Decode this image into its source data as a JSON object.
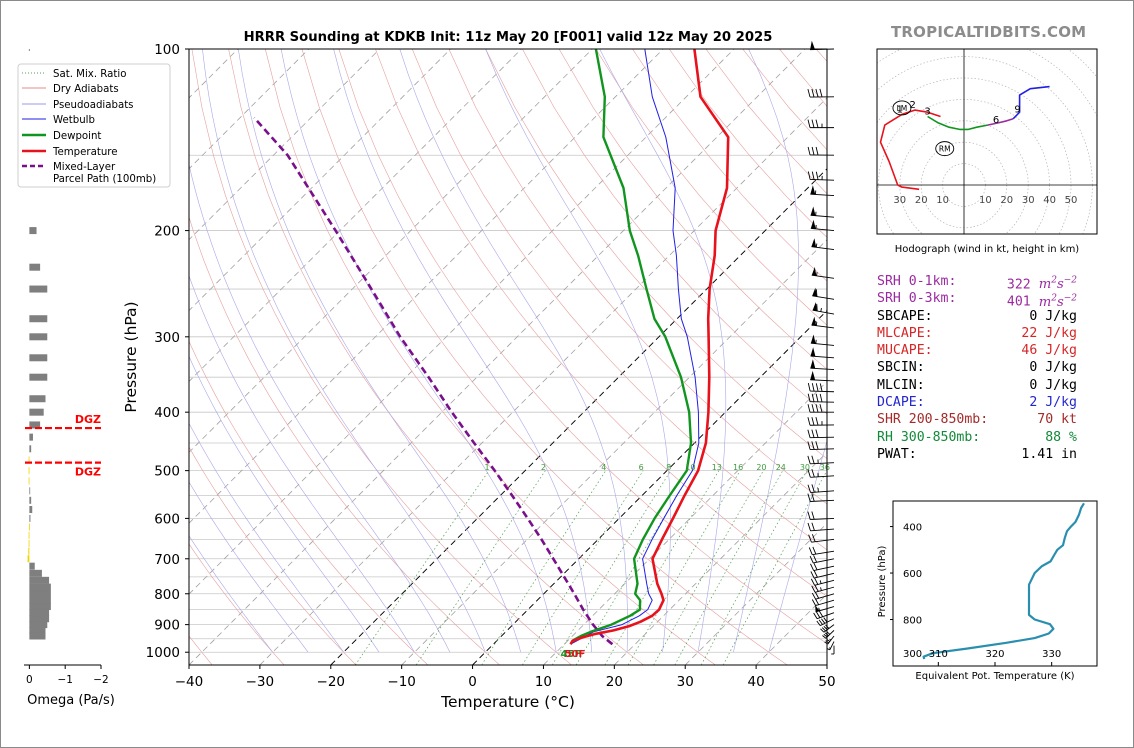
{
  "title": "HRRR Sounding at KDKB Init: 11z May 20 [F001] valid 12z May 20 2025",
  "brand": "TROPICALTIDBITS.COM",
  "colors": {
    "temperature": "#e8121c",
    "dewpoint": "#10951f",
    "wetbulb": "#1f1fe6",
    "parcel": "#7a0f8c",
    "srh": "#9b2aa0",
    "cape": "#d62626",
    "dcape": "#2525d0",
    "shear": "#a52a2a",
    "rh": "#138a3a",
    "theta_e": "#2a8fae",
    "dgz": "#ff0000",
    "grid": "#c8c8c8"
  },
  "chart_data": [
    {
      "name": "skewt",
      "type": "line",
      "title": "HRRR Sounding at KDKB Init: 11z May 20 [F001] valid 12z May 20 2025",
      "xlabel": "Temperature (°C)",
      "ylabel": "Pressure (hPa)",
      "xlim": [
        -40,
        50
      ],
      "ylim": [
        1050,
        100
      ],
      "yscale": "log",
      "xticks": [
        -40,
        -30,
        -20,
        -10,
        0,
        10,
        20,
        30,
        40,
        50
      ],
      "xtick_labels": [
        "−40",
        "−30",
        "−20",
        "−10",
        "0",
        "10",
        "20",
        "30",
        "40",
        "50"
      ],
      "yticks": [
        100,
        200,
        300,
        400,
        500,
        600,
        700,
        800,
        900,
        1000
      ],
      "ytick_labels": [
        "100",
        "200",
        "300",
        "400",
        "500",
        "600",
        "700",
        "800",
        "900",
        "1000"
      ],
      "grid": true,
      "legend": {
        "position": "upper-left",
        "entries": [
          {
            "label": "Sat. Mix. Ratio",
            "style": "dotted",
            "color": "#5a9e5a"
          },
          {
            "label": "Dry Adiabats",
            "style": "solid",
            "color": "#e58a8a"
          },
          {
            "label": "Pseudoadiabats",
            "style": "solid",
            "color": "#9a9ae8"
          },
          {
            "label": "Wetbulb",
            "style": "solid",
            "color": "#1f1fe6"
          },
          {
            "label": "Dewpoint",
            "style": "solid",
            "color": "#10951f"
          },
          {
            "label": "Temperature",
            "style": "solid",
            "color": "#e8121c"
          },
          {
            "label": "Mixed-Layer",
            "style": "dashed",
            "color": "#7a0f8c"
          },
          {
            "label": "Parcel Path (100mb)",
            "style": "dashed",
            "color": "#7a0f8c"
          }
        ]
      },
      "mixing_ratio_labels": [
        "1",
        "2",
        "4",
        "6",
        "8",
        "10",
        "13",
        "16",
        "20",
        "24",
        "30",
        "36"
      ],
      "mixing_ratio_values": [
        1,
        2,
        4,
        6,
        8,
        10,
        13,
        16,
        20,
        24,
        30,
        36
      ],
      "surface_label_dewpoint": "45F",
      "surface_label_temperature": "50F",
      "series": [
        {
          "name": "Temperature",
          "p": [
            970,
            958,
            945,
            932,
            920,
            905,
            890,
            870,
            850,
            820,
            800,
            770,
            700,
            650,
            600,
            550,
            500,
            450,
            400,
            350,
            300,
            280,
            250,
            220,
            200,
            170,
            140,
            120,
            100
          ],
          "t": [
            10.9,
            10.7,
            11.6,
            13.0,
            15.0,
            16.6,
            17.6,
            18.4,
            18.5,
            17.8,
            16.6,
            14.6,
            10.4,
            9.0,
            7.6,
            6.0,
            4.4,
            1.6,
            -2.4,
            -7.2,
            -13.0,
            -15.6,
            -19.6,
            -23.6,
            -27.0,
            -31.4,
            -38.4,
            -48.0,
            -55.6
          ]
        },
        {
          "name": "Dewpoint",
          "p": [
            970,
            955,
            940,
            925,
            900,
            870,
            850,
            820,
            800,
            770,
            700,
            650,
            600,
            550,
            500,
            450,
            400,
            350,
            300,
            280,
            250,
            220,
            200,
            170,
            140,
            120,
            100
          ],
          "t": [
            10.9,
            10.7,
            11.2,
            12.0,
            13.9,
            15.3,
            15.8,
            14.5,
            12.9,
            11.8,
            7.8,
            6.3,
            5.0,
            3.9,
            2.8,
            -0.5,
            -5.1,
            -11.2,
            -19.1,
            -23.2,
            -28.5,
            -34.4,
            -39.1,
            -46.0,
            -56.0,
            -61.5,
            -69.5
          ]
        },
        {
          "name": "Wetbulb",
          "p": [
            970,
            925,
            900,
            870,
            850,
            820,
            800,
            770,
            700,
            650,
            600,
            550,
            500,
            450,
            400,
            350,
            300,
            280,
            250,
            220,
            200,
            170,
            140,
            120,
            100
          ],
          "t": [
            10.9,
            12.4,
            15.4,
            16.6,
            16.9,
            16.2,
            14.8,
            13.1,
            9.0,
            7.6,
            6.3,
            4.9,
            3.6,
            0.6,
            -3.8,
            -9.2,
            -16.0,
            -19.4,
            -24.0,
            -29.0,
            -33.0,
            -38.7,
            -47.2,
            -54.8,
            -62.6
          ]
        },
        {
          "name": "Mixed-Layer Parcel Path (100mb)",
          "p": [
            970,
            940,
            900,
            850,
            800,
            750,
            700,
            650,
            600,
            550,
            500,
            450,
            400,
            350,
            300,
            250,
            200,
            150,
            130
          ],
          "t": [
            16.8,
            14.2,
            11.3,
            7.8,
            4.3,
            0.5,
            -3.6,
            -8.0,
            -12.9,
            -18.3,
            -24.3,
            -31.1,
            -38.6,
            -46.8,
            -56.5,
            -67.3,
            -80.6,
            -98.0,
            -108.0
          ]
        }
      ]
    },
    {
      "name": "hodograph",
      "type": "line",
      "caption": "Hodograph (wind in kt, height in km)",
      "xtick_labels": [
        "30",
        "20",
        "10",
        "10",
        "20",
        "30",
        "40",
        "50"
      ],
      "ring_spacing_kt": 10,
      "height_labels": [
        "1",
        "2",
        "3",
        "6",
        "9"
      ],
      "storm_motion_labels": [
        "LM",
        "RM"
      ],
      "series": [
        {
          "name": "0-3 km",
          "color": "red",
          "u": [
            -21,
            -29,
            -31,
            -35,
            -39,
            -37,
            -29,
            -23,
            -17,
            -11
          ],
          "v": [
            -2,
            -1,
            0,
            11,
            20,
            28,
            33,
            35,
            34,
            32
          ]
        },
        {
          "name": "3-6 km",
          "color": "green",
          "u": [
            -17,
            -12,
            -7,
            -2,
            2,
            6,
            11
          ],
          "v": [
            32,
            29,
            27,
            26,
            26,
            27,
            28
          ]
        },
        {
          "name": "6-9 km",
          "color": "purple",
          "u": [
            11,
            16,
            20,
            23
          ],
          "v": [
            28,
            29,
            30,
            31
          ]
        },
        {
          "name": "9+ km",
          "color": "blue",
          "u": [
            23,
            26,
            26,
            26,
            31,
            40
          ],
          "v": [
            31,
            34,
            38,
            42,
            45,
            46
          ]
        }
      ],
      "storm_motions": {
        "LM": {
          "u": -29,
          "v": 36
        },
        "RM": {
          "u": -9,
          "v": 17
        }
      }
    },
    {
      "name": "omega",
      "type": "bar",
      "xlabel": "Omega (Pa/s)",
      "xlim": [
        0.15,
        -2.0
      ],
      "xticks": [
        0,
        -1,
        -2
      ],
      "xtick_labels": [
        "0",
        "−1",
        "−2"
      ],
      "pressure": [
        200,
        230,
        250,
        280,
        300,
        325,
        350,
        380,
        400,
        420,
        440,
        460,
        480,
        500,
        520,
        540,
        560,
        580,
        600,
        620,
        640,
        660,
        680,
        700,
        720,
        740,
        760,
        780,
        800,
        820,
        840,
        860,
        880,
        900,
        920,
        940,
        960
      ],
      "values": [
        -0.2,
        -0.3,
        -0.5,
        -0.5,
        -0.5,
        -0.5,
        -0.5,
        -0.45,
        -0.4,
        -0.3,
        -0.1,
        -0.05,
        0.02,
        0.02,
        0.02,
        -0.02,
        -0.05,
        -0.08,
        -0.03,
        0.01,
        0.02,
        0.02,
        0.03,
        0.05,
        -0.15,
        -0.35,
        -0.55,
        -0.6,
        -0.6,
        -0.6,
        -0.6,
        -0.55,
        -0.55,
        -0.5,
        -0.45,
        -0.45,
        0.0
      ],
      "dgz_label": "DGZ",
      "dgz_pressures": [
        425,
        485
      ]
    },
    {
      "name": "theta_e",
      "type": "line",
      "xlabel": "Equivalent Pot. Temperature (K)",
      "ylabel": "Pressure (hPa)",
      "xlim": [
        302,
        338
      ],
      "ylim": [
        1000,
        290
      ],
      "xticks": [
        310,
        320,
        330
      ],
      "xtick_labels": [
        "310",
        "320",
        "330"
      ],
      "yticks_left": [
        400,
        600,
        800
      ],
      "ytick_labels_left": [
        "400",
        "600",
        "800"
      ],
      "inner_tick_labels": [
        "300"
      ],
      "p": [
        970,
        960,
        945,
        925,
        900,
        880,
        860,
        840,
        820,
        800,
        780,
        750,
        700,
        650,
        600,
        570,
        550,
        520,
        500,
        480,
        450,
        420,
        400,
        380,
        350,
        320,
        300
      ],
      "theta_e": [
        307.5,
        307.4,
        309,
        315,
        322,
        327,
        329.5,
        330.3,
        329.7,
        327,
        326,
        326,
        326,
        326,
        327,
        328.3,
        329.8,
        330.5,
        331,
        332,
        332.3,
        332.7,
        333.4,
        334.2,
        334.8,
        335.2,
        335.7
      ]
    }
  ],
  "stats": [
    {
      "label": "SRH 0-1km:",
      "value": "322",
      "unit": "m2s-2",
      "color": "#9b2aa0"
    },
    {
      "label": "SRH 0-3km:",
      "value": "401",
      "unit": "m2s-2",
      "color": "#9b2aa0"
    },
    {
      "label": "SBCAPE:",
      "value": "0 J/kg",
      "color": "#000000"
    },
    {
      "label": "MLCAPE:",
      "value": "22 J/kg",
      "color": "#d62626"
    },
    {
      "label": "MUCAPE:",
      "value": "46 J/kg",
      "color": "#d62626"
    },
    {
      "label": "SBCIN:",
      "value": "0 J/kg",
      "color": "#000000"
    },
    {
      "label": "MLCIN:",
      "value": "0 J/kg",
      "color": "#000000"
    },
    {
      "label": "DCAPE:",
      "value": "2 J/kg",
      "color": "#2525d0"
    },
    {
      "label": "SHR 200-850mb:",
      "value": "70 kt",
      "color": "#a52a2a"
    },
    {
      "label": "RH 300-850mb:",
      "value": "88 %",
      "color": "#138a3a"
    },
    {
      "label": "PWAT:",
      "value": "1.41 in",
      "color": "#000000"
    }
  ],
  "wind_profile": {
    "pressure": [
      100,
      120,
      135,
      150,
      165,
      175,
      190,
      200,
      215,
      240,
      260,
      275,
      290,
      310,
      325,
      340,
      355,
      370,
      385,
      400,
      420,
      440,
      460,
      485,
      510,
      540,
      560,
      600,
      625,
      650,
      680,
      700,
      720,
      740,
      760,
      780,
      800,
      820,
      840,
      860,
      880,
      900,
      920,
      940,
      960,
      975
    ],
    "speed_kt": [
      50,
      40,
      35,
      30,
      35,
      55,
      55,
      55,
      55,
      55,
      60,
      65,
      55,
      55,
      50,
      50,
      50,
      40,
      40,
      40,
      35,
      30,
      30,
      25,
      25,
      25,
      20,
      20,
      20,
      20,
      20,
      20,
      20,
      20,
      25,
      25,
      20,
      20,
      55,
      30,
      40,
      40,
      40,
      35,
      15,
      10
    ],
    "dir_deg": [
      265,
      268,
      270,
      272,
      275,
      280,
      283,
      285,
      290,
      292,
      295,
      297,
      290,
      285,
      282,
      280,
      278,
      275,
      273,
      270,
      268,
      266,
      265,
      262,
      260,
      258,
      262,
      262,
      258,
      250,
      245,
      240,
      238,
      236,
      234,
      232,
      230,
      230,
      230,
      225,
      215,
      205,
      200,
      195,
      190,
      180
    ]
  }
}
